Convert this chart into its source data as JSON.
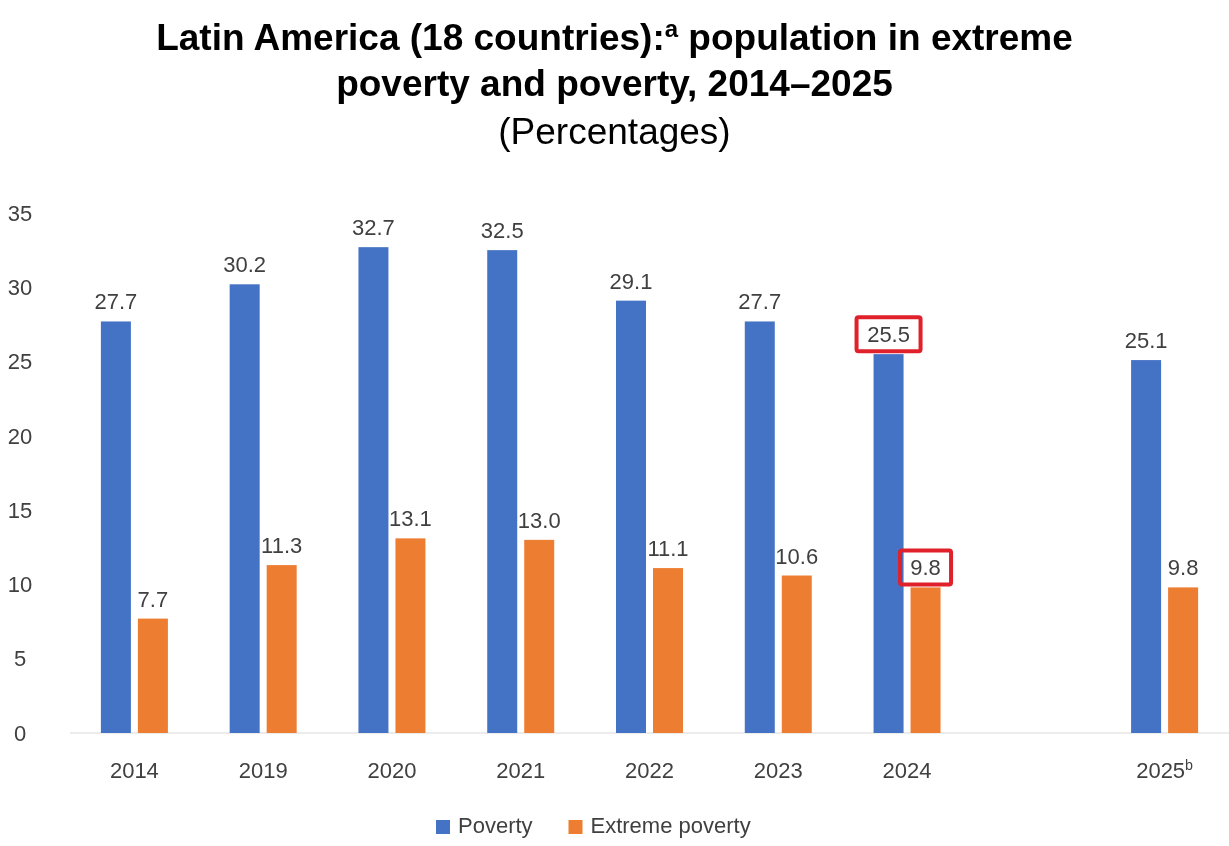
{
  "chart_data": {
    "type": "bar",
    "title": "Latin America (18 countries):$^{a}$ population in extreme poverty and poverty, 2014–2025",
    "subtitle": "(Percentages)",
    "categories": [
      "2014",
      "2019",
      "2020",
      "2021",
      "2022",
      "2023",
      "2024",
      null,
      "2025$^{b}$"
    ],
    "series": [
      {
        "name": "Poverty",
        "color": "#4472c4",
        "values": [
          27.7,
          30.2,
          32.7,
          32.5,
          29.1,
          27.7,
          25.5,
          null,
          25.1
        ],
        "value_labels": [
          "27.7",
          "30.2",
          "32.7",
          "32.5",
          "29.1",
          "27.7",
          "25.5",
          null,
          "25.1"
        ]
      },
      {
        "name": "Extreme poverty",
        "color": "#ed7d31",
        "values": [
          7.7,
          11.3,
          13.1,
          13.0,
          11.1,
          10.6,
          9.8,
          null,
          9.8
        ],
        "value_labels": [
          "7.7",
          "11.3",
          "13.1",
          "13.0",
          "11.1",
          "10.6",
          "9.8",
          null,
          "9.8"
        ]
      }
    ],
    "ylim": [
      0,
      35
    ],
    "yticks": [
      0,
      5,
      10,
      15,
      20,
      25,
      30,
      35
    ],
    "grid": false,
    "legend": "bottom"
  }
}
